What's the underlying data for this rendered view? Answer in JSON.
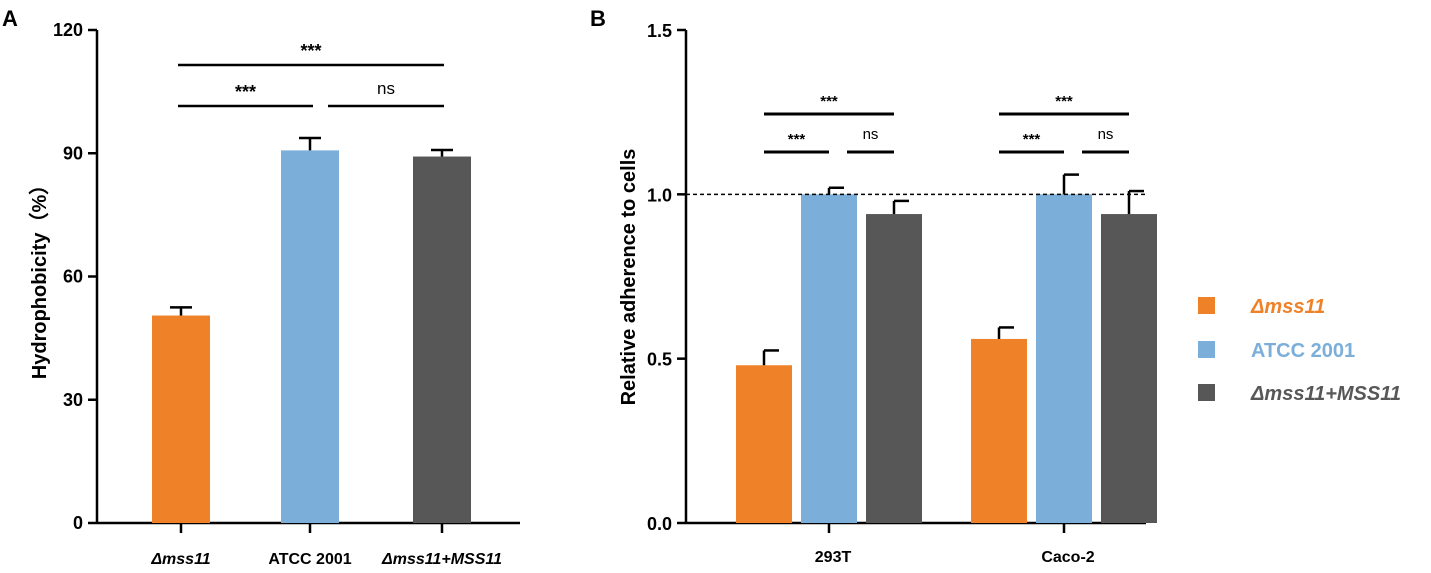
{
  "colors": {
    "mss11": "#ef8228",
    "atcc": "#7bafd9",
    "complement": "#575757"
  },
  "chart_data": [
    {
      "panel": "A",
      "type": "bar",
      "ylabel": "Hydrophobicity（%）",
      "ylim": [
        0,
        120
      ],
      "yticks": [
        "0",
        "30",
        "60",
        "90",
        "120"
      ],
      "categories": [
        "Δmss11",
        "ATCC 2001",
        "Δmss11+MSS11"
      ],
      "values": [
        50.5,
        90.7,
        89.2
      ],
      "errors": [
        2.0,
        3.0,
        1.6
      ],
      "significance": [
        {
          "label": "***",
          "from": 0,
          "to": 2
        },
        {
          "label": "***",
          "from": 0,
          "to": 1
        },
        {
          "label": "ns",
          "from": 1,
          "to": 2
        }
      ]
    },
    {
      "panel": "B",
      "type": "bar",
      "ylabel": "Relative adherence to cells",
      "ylim": [
        0,
        1.5
      ],
      "yticks": [
        "0.0",
        "0.5",
        "1.0",
        "1.5"
      ],
      "reference_line": 1.0,
      "categories": [
        "293T",
        "Caco-2"
      ],
      "series": [
        {
          "name": "Δmss11",
          "values": [
            0.48,
            0.56
          ],
          "errors": [
            0.045,
            0.035
          ]
        },
        {
          "name": "ATCC 2001",
          "values": [
            1.0,
            1.0
          ],
          "errors": [
            0.02,
            0.06
          ]
        },
        {
          "name": "Δmss11+MSS11",
          "values": [
            0.94,
            0.94
          ],
          "errors": [
            0.04,
            0.07
          ]
        }
      ],
      "significance": [
        {
          "group": 0,
          "label": "***",
          "from": 0,
          "to": 2
        },
        {
          "group": 0,
          "label": "***",
          "from": 0,
          "to": 1
        },
        {
          "group": 0,
          "label": "ns",
          "from": 1,
          "to": 2
        },
        {
          "group": 1,
          "label": "***",
          "from": 0,
          "to": 2
        },
        {
          "group": 1,
          "label": "***",
          "from": 0,
          "to": 1
        },
        {
          "group": 1,
          "label": "ns",
          "from": 1,
          "to": 2
        }
      ],
      "legend": {
        "position": "right",
        "items": [
          "Δmss11",
          "ATCC 2001",
          "Δmss11+MSS11"
        ]
      }
    }
  ]
}
